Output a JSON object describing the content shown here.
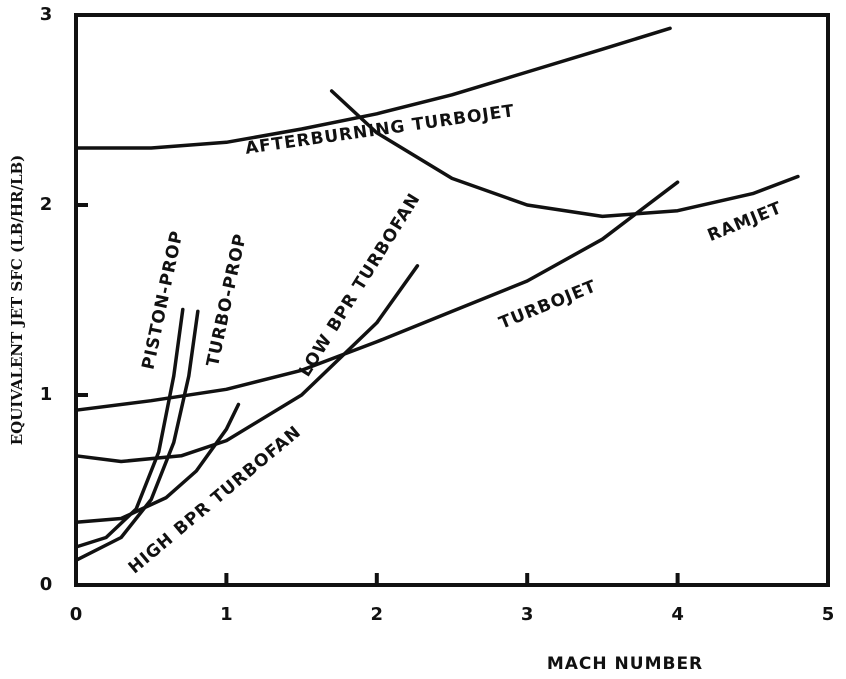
{
  "chart_data": {
    "type": "line",
    "xlabel": "MACH NUMBER",
    "ylabel": "EQUIVALENT JET SFC (LB/HR/LB)",
    "xlim": [
      0,
      5
    ],
    "xticks": [
      0,
      1,
      2,
      3,
      4,
      5
    ],
    "ylim": [
      0,
      3
    ],
    "yticks": [
      0,
      1,
      2,
      3
    ],
    "grid": false,
    "series": [
      {
        "name": "AFTERBURNING TURBOJET",
        "color": "#111111",
        "x": [
          0,
          0.5,
          1,
          1.5,
          2,
          2.5,
          3,
          3.5,
          3.95
        ],
        "values": [
          2.3,
          2.3,
          2.33,
          2.4,
          2.48,
          2.58,
          2.7,
          2.82,
          2.93
        ]
      },
      {
        "name": "RAMJET",
        "color": "#111111",
        "x": [
          1.7,
          2,
          2.5,
          3,
          3.5,
          4,
          4.5,
          4.8
        ],
        "values": [
          2.6,
          2.38,
          2.14,
          2.0,
          1.94,
          1.97,
          2.06,
          2.15
        ]
      },
      {
        "name": "TURBOJET",
        "color": "#111111",
        "x": [
          0,
          0.5,
          1,
          1.5,
          2,
          2.5,
          3,
          3.5,
          4
        ],
        "values": [
          0.92,
          0.97,
          1.03,
          1.13,
          1.28,
          1.44,
          1.6,
          1.82,
          2.12
        ]
      },
      {
        "name": "LOW BPR TURBOFAN",
        "color": "#111111",
        "x": [
          0,
          0.3,
          0.7,
          1,
          1.5,
          2,
          2.27
        ],
        "values": [
          0.68,
          0.65,
          0.68,
          0.76,
          1.0,
          1.38,
          1.68
        ]
      },
      {
        "name": "HIGH BPR TURBOFAN",
        "color": "#111111",
        "x": [
          0,
          0.3,
          0.6,
          0.8,
          1,
          1.08
        ],
        "values": [
          0.33,
          0.35,
          0.46,
          0.6,
          0.82,
          0.95
        ]
      },
      {
        "name": "PISTON-PROP",
        "color": "#111111",
        "x": [
          0,
          0.2,
          0.4,
          0.55,
          0.65,
          0.71
        ],
        "values": [
          0.2,
          0.25,
          0.4,
          0.7,
          1.1,
          1.45
        ]
      },
      {
        "name": "TURBO-PROP",
        "color": "#111111",
        "x": [
          0,
          0.3,
          0.5,
          0.65,
          0.75,
          0.81
        ],
        "values": [
          0.13,
          0.25,
          0.45,
          0.75,
          1.1,
          1.44
        ]
      }
    ]
  }
}
